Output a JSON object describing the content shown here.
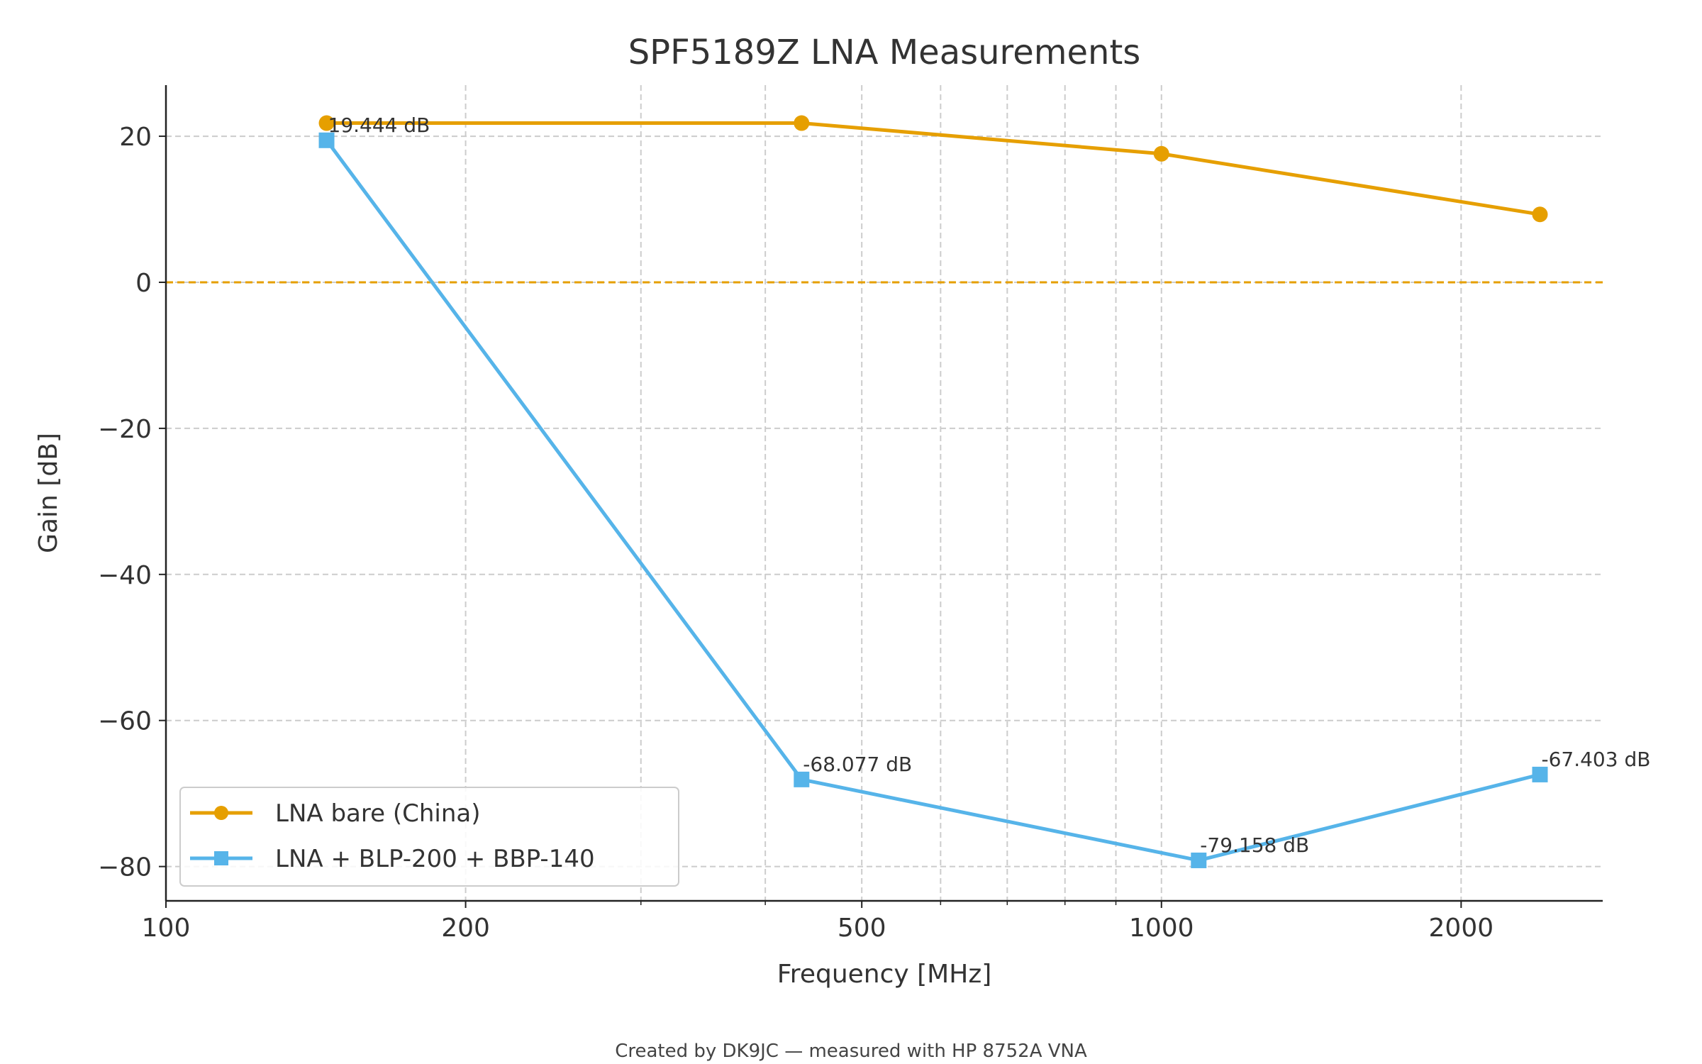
{
  "chart_data": {
    "type": "line",
    "title": "SPF5189Z LNA Measurements",
    "xlabel": "Frequency [MHz]",
    "ylabel": "Gain [dB]",
    "xscale": "log",
    "xlim": [
      100,
      2775
    ],
    "ylim": [
      -84.7,
      27
    ],
    "xticks": [
      100,
      200,
      500,
      1000,
      2000
    ],
    "xtick_labels": [
      "100",
      "200",
      "500",
      "1000",
      "2000"
    ],
    "x_minor_grid": [
      300,
      400,
      600,
      700,
      800,
      900
    ],
    "yticks": [
      20,
      0,
      -20,
      -40,
      -60,
      -80
    ],
    "ytick_labels": [
      "20",
      "0",
      "−20",
      "−40",
      "−60",
      "−80"
    ],
    "grid": true,
    "reference_line": {
      "y": 0,
      "color": "#E69F00",
      "style": "dashed"
    },
    "legend_position": "lower-left",
    "series": [
      {
        "name": "LNA bare (China)",
        "color": "#E69F00",
        "marker": "circle",
        "x": [
          145,
          435,
          1000,
          2400
        ],
        "y": [
          21.8,
          21.8,
          17.6,
          9.3
        ]
      },
      {
        "name": "LNA + BLP-200 + BBP-140",
        "color": "#56B4E9",
        "marker": "square",
        "x": [
          145,
          435,
          1090,
          2400
        ],
        "y": [
          19.444,
          -68.077,
          -79.158,
          -67.403
        ],
        "labels": [
          "19.444 dB",
          "-68.077 dB",
          "-79.158 dB",
          "-67.403 dB"
        ]
      }
    ],
    "footer": "Created by DK9JC — measured with HP 8752A VNA"
  }
}
